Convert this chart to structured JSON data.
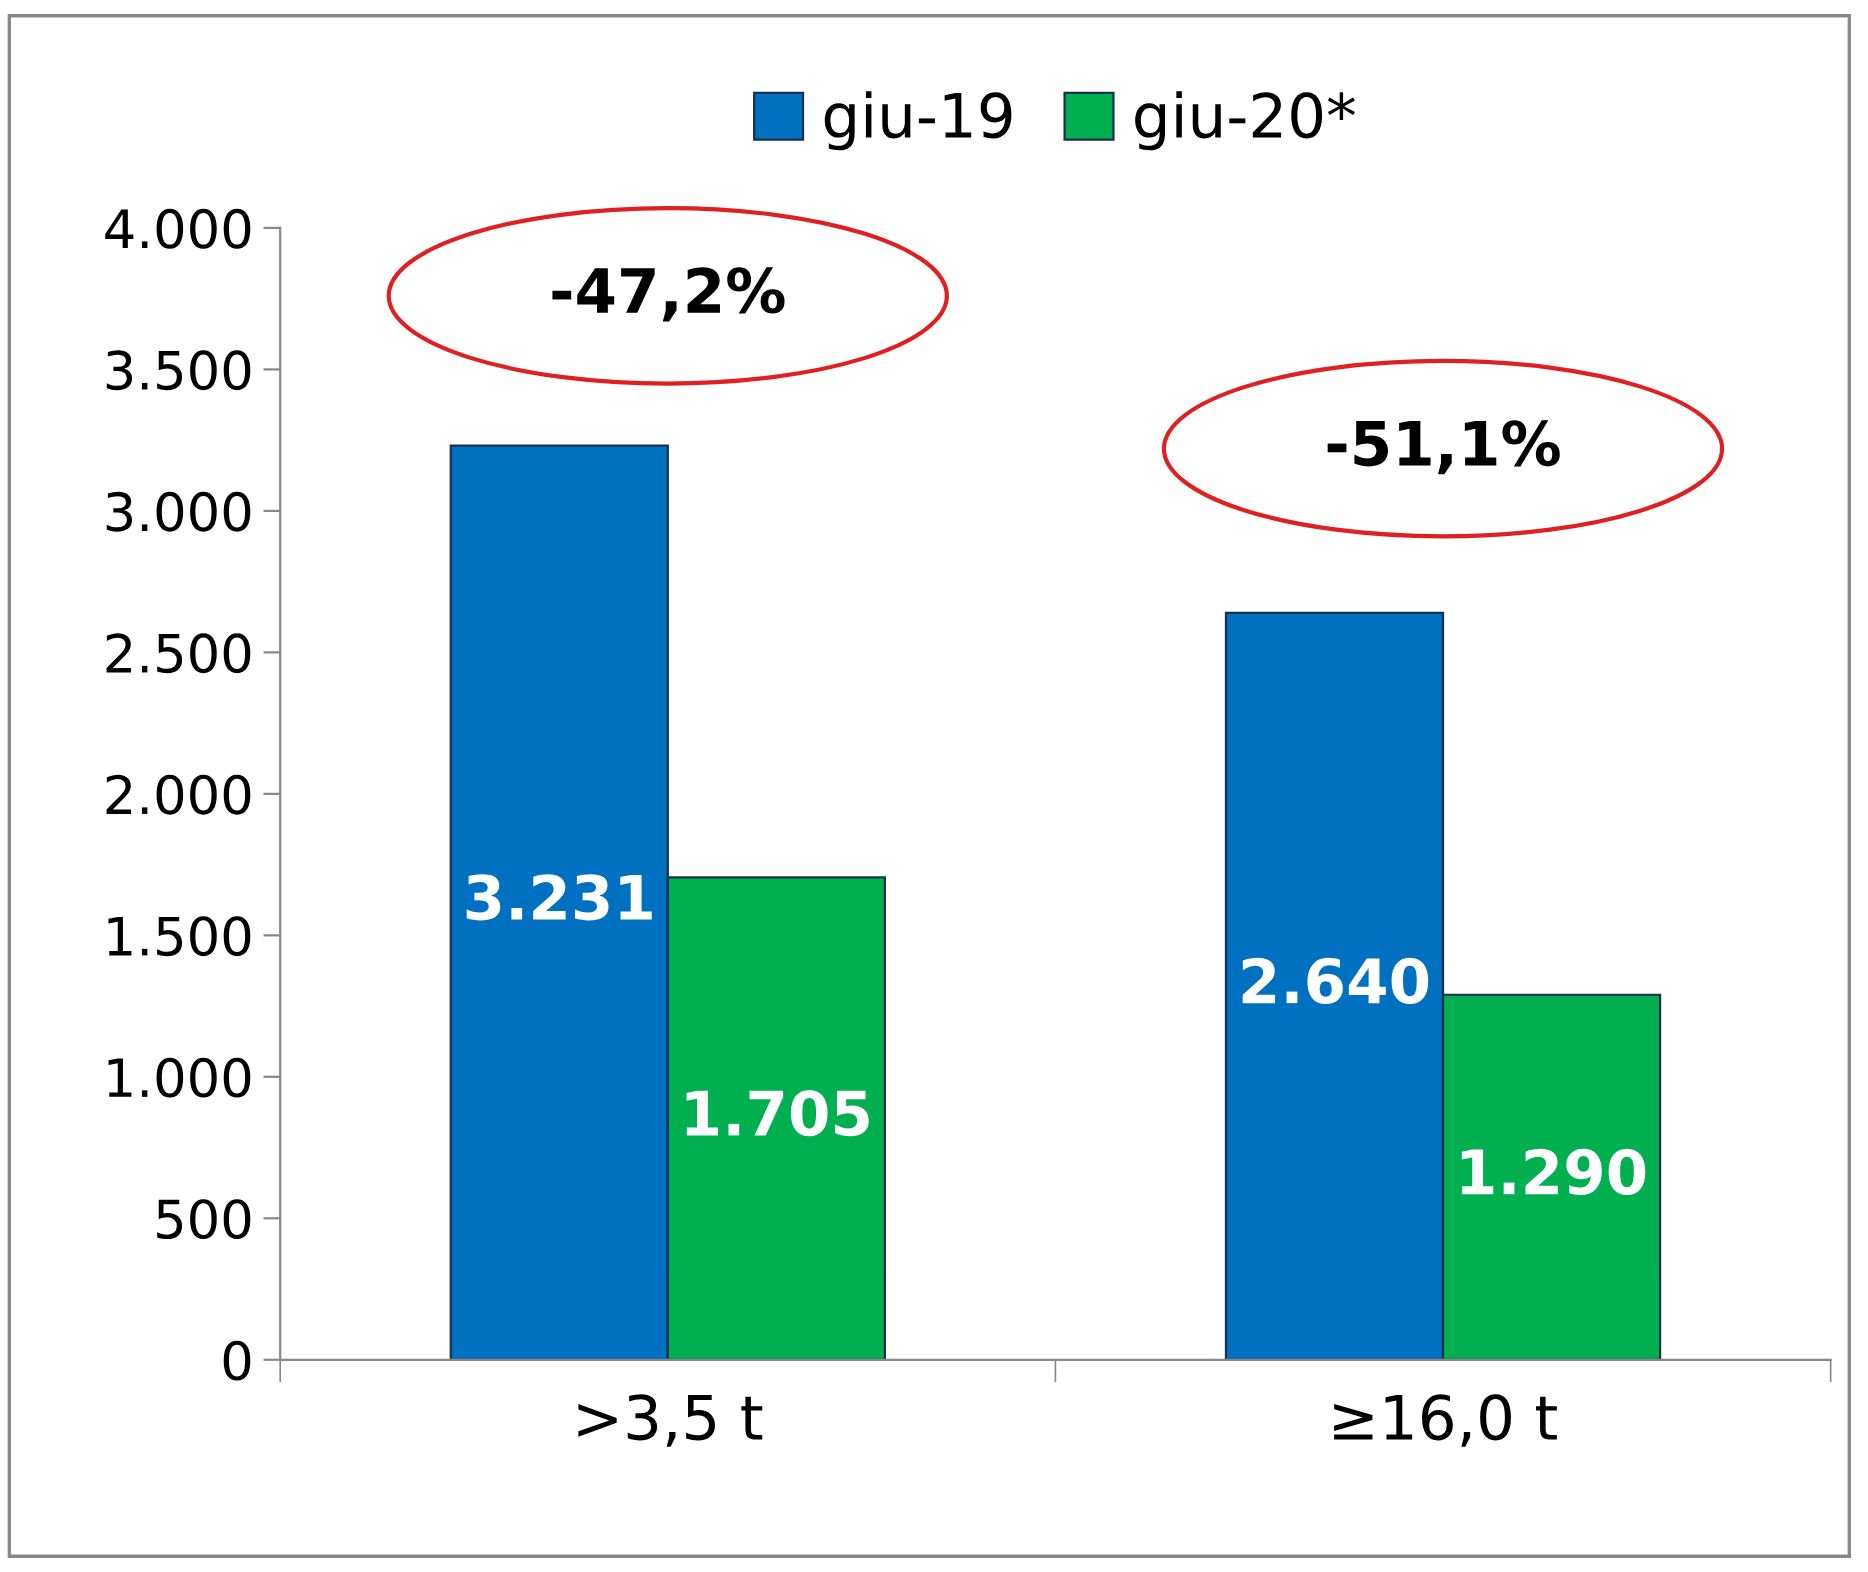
{
  "chart_data": {
    "type": "bar",
    "categories": [
      ">3,5 t",
      "≥16,0 t"
    ],
    "series": [
      {
        "name": "giu-19",
        "color": "#0070c0",
        "values": [
          3231,
          2640
        ],
        "value_labels": [
          "3.231",
          "2.640"
        ]
      },
      {
        "name": "giu-20*",
        "color": "#00b050",
        "values": [
          1705,
          1290
        ],
        "value_labels": [
          "1.705",
          "1.290"
        ]
      }
    ],
    "ylim": [
      0,
      4000
    ],
    "yticks": [
      {
        "value": 0,
        "label": "0"
      },
      {
        "value": 500,
        "label": "500"
      },
      {
        "value": 1000,
        "label": "1.000"
      },
      {
        "value": 1500,
        "label": "1.500"
      },
      {
        "value": 2000,
        "label": "2.000"
      },
      {
        "value": 2500,
        "label": "2.500"
      },
      {
        "value": 3000,
        "label": "3.000"
      },
      {
        "value": 3500,
        "label": "3.500"
      },
      {
        "value": 4000,
        "label": "4.000"
      }
    ],
    "annotations": [
      "-47,2%",
      "-51,1%"
    ],
    "grid": false,
    "legend": "top"
  }
}
